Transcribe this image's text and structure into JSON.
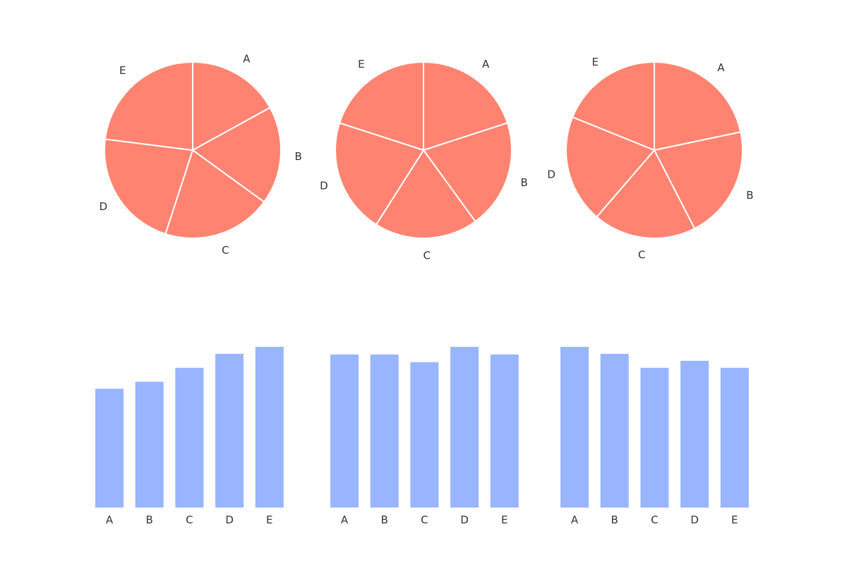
{
  "chart_data": [
    {
      "type": "pie",
      "categories": [
        "A",
        "B",
        "C",
        "D",
        "E"
      ],
      "values": [
        17,
        18,
        20,
        22,
        23
      ],
      "color": "#ff8370"
    },
    {
      "type": "pie",
      "categories": [
        "A",
        "B",
        "C",
        "D",
        "E"
      ],
      "values": [
        20,
        20,
        19,
        21,
        20
      ],
      "color": "#ff8370"
    },
    {
      "type": "pie",
      "categories": [
        "A",
        "B",
        "C",
        "D",
        "E"
      ],
      "values": [
        23,
        22,
        20,
        21,
        20
      ],
      "color": "#ff8370"
    },
    {
      "type": "bar",
      "categories": [
        "A",
        "B",
        "C",
        "D",
        "E"
      ],
      "values": [
        17,
        18,
        20,
        22,
        23
      ],
      "color": "#99b5ff",
      "ylim": [
        0,
        23
      ]
    },
    {
      "type": "bar",
      "categories": [
        "A",
        "B",
        "C",
        "D",
        "E"
      ],
      "values": [
        20,
        20,
        19,
        21,
        20
      ],
      "color": "#99b5ff",
      "ylim": [
        0,
        21
      ]
    },
    {
      "type": "bar",
      "categories": [
        "A",
        "B",
        "C",
        "D",
        "E"
      ],
      "values": [
        23,
        22,
        20,
        21,
        20
      ],
      "color": "#99b5ff",
      "ylim": [
        0,
        23
      ]
    }
  ]
}
